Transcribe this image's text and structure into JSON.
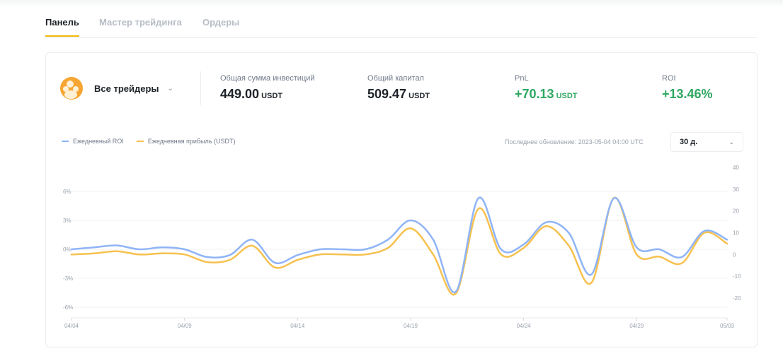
{
  "tabs": [
    {
      "label": "Панель",
      "active": true
    },
    {
      "label": "Мастер трейдинга",
      "active": false
    },
    {
      "label": "Ордеры",
      "active": false
    }
  ],
  "trader_selector": {
    "label": "Все трейдеры",
    "icon": "users-group-icon"
  },
  "stats": {
    "investment": {
      "label": "Общая сумма инвестиций",
      "value": "449.00",
      "unit": "USDT"
    },
    "capital": {
      "label": "Общий капитал",
      "value": "509.47",
      "unit": "USDT"
    },
    "pnl": {
      "label": "PnL",
      "value": "+70.13",
      "unit": "USDT"
    },
    "roi": {
      "label": "ROI",
      "value": "+13.46%"
    }
  },
  "colors": {
    "accent": "#f0b90b",
    "positive": "#2ea760",
    "roi_line": "#8fb4f6",
    "profit_line": "#f6c14f"
  },
  "last_update": "Последнее обновление: 2023-05-04 04:00 UTC",
  "range_select": {
    "value": "30 д."
  },
  "chart_data": {
    "type": "line",
    "legend_position": "top-left",
    "grid": true,
    "x_ticks": [
      "04/04",
      "04/09",
      "04/14",
      "04/19",
      "04/24",
      "04/29",
      "05/03"
    ],
    "x": [
      "04/04",
      "04/05",
      "04/06",
      "04/07",
      "04/08",
      "04/09",
      "04/10",
      "04/11",
      "04/12",
      "04/13",
      "04/14",
      "04/15",
      "04/16",
      "04/17",
      "04/18",
      "04/19",
      "04/20",
      "04/21",
      "04/22",
      "04/23",
      "04/24",
      "04/25",
      "04/26",
      "04/27",
      "04/28",
      "04/29",
      "04/30",
      "05/01",
      "05/02",
      "05/03"
    ],
    "y_left": {
      "ticks": [
        "6%",
        "3%",
        "0%",
        "-3%",
        "-6%"
      ],
      "range": [
        -6,
        6
      ]
    },
    "y_right": {
      "ticks": [
        "40",
        "30",
        "20",
        "10",
        "0",
        "-10",
        "-20"
      ],
      "range": [
        -20,
        40
      ]
    },
    "series": [
      {
        "name": "Ежедневный ROI",
        "axis": "left",
        "color": "#8fb4f6",
        "values": [
          0.0,
          0.2,
          0.4,
          0.0,
          0.2,
          0.0,
          -0.8,
          -0.6,
          1.0,
          -1.4,
          -0.6,
          0.0,
          0.0,
          0.0,
          1.0,
          3.0,
          1.0,
          -4.4,
          5.3,
          0.0,
          0.5,
          2.8,
          1.7,
          -2.6,
          5.3,
          0.2,
          0.0,
          -0.8,
          1.9,
          1.0
        ]
      },
      {
        "name": "Ежедневная прибыль (USDT)",
        "axis": "right",
        "color": "#f6c14f",
        "values": [
          0.0,
          0.5,
          1.5,
          0.0,
          0.5,
          0.0,
          -3.5,
          -2.5,
          4.0,
          -6.0,
          -2.5,
          0.0,
          0.0,
          0.0,
          3.0,
          12.0,
          0.0,
          -18.0,
          21.0,
          0.0,
          3.0,
          13.0,
          4.0,
          -13.0,
          26.0,
          0.0,
          -1.0,
          -4.0,
          10.0,
          5.0
        ]
      }
    ]
  }
}
